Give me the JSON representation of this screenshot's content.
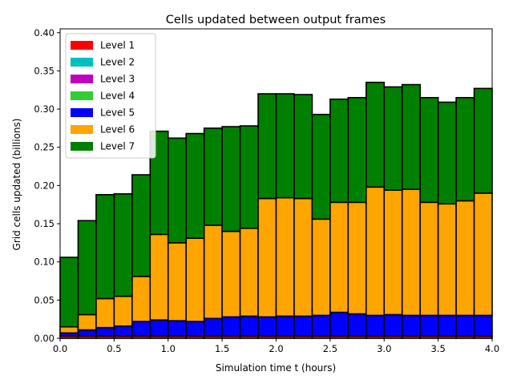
{
  "chart_data": {
    "type": "bar",
    "stacked": true,
    "title": "Cells updated between output frames",
    "xlabel": "Simulation time t (hours)",
    "ylabel": "Grid cells updated (billions)",
    "xlim": [
      0.0,
      4.0
    ],
    "ylim": [
      0.0,
      0.405
    ],
    "xticks": [
      "0.0",
      "0.5",
      "1.0",
      "1.5",
      "2.0",
      "2.5",
      "3.0",
      "3.5",
      "4.0"
    ],
    "xtick_values": [
      0.0,
      0.5,
      1.0,
      1.5,
      2.0,
      2.5,
      3.0,
      3.5,
      4.0
    ],
    "yticks": [
      "0.00",
      "0.05",
      "0.10",
      "0.15",
      "0.20",
      "0.25",
      "0.30",
      "0.35",
      "0.40"
    ],
    "ytick_values": [
      0.0,
      0.05,
      0.1,
      0.15,
      0.2,
      0.25,
      0.3,
      0.35,
      0.4
    ],
    "legend_position": "top-left",
    "bin_width": 0.1667,
    "x": [
      0.0833,
      0.25,
      0.4167,
      0.5833,
      0.75,
      0.9167,
      1.0833,
      1.25,
      1.4167,
      1.5833,
      1.75,
      1.9167,
      2.0833,
      2.25,
      2.4167,
      2.5833,
      2.75,
      2.9167,
      3.0833,
      3.25,
      3.4167,
      3.5833,
      3.75,
      3.9167
    ],
    "series": [
      {
        "name": "Level 1",
        "color": "#ff0000",
        "values": [
          0.003,
          0.003,
          0.003,
          0.003,
          0.003,
          0.003,
          0.003,
          0.003,
          0.003,
          0.003,
          0.003,
          0.003,
          0.003,
          0.003,
          0.003,
          0.003,
          0.003,
          0.003,
          0.003,
          0.003,
          0.003,
          0.003,
          0.003,
          0.003
        ]
      },
      {
        "name": "Level 2",
        "color": "#00bfbf",
        "values": [
          0,
          0,
          0,
          0,
          0,
          0,
          0,
          0,
          0,
          0,
          0,
          0,
          0,
          0,
          0,
          0,
          0,
          0,
          0,
          0,
          0,
          0,
          0,
          0
        ]
      },
      {
        "name": "Level 3",
        "color": "#bf00bf",
        "values": [
          0,
          0,
          0,
          0,
          0,
          0,
          0,
          0,
          0,
          0,
          0,
          0,
          0,
          0,
          0,
          0,
          0,
          0,
          0,
          0,
          0,
          0,
          0,
          0
        ]
      },
      {
        "name": "Level 4",
        "color": "#32cd32",
        "values": [
          0,
          0,
          0,
          0,
          0,
          0,
          0,
          0,
          0,
          0,
          0,
          0,
          0,
          0,
          0,
          0,
          0,
          0,
          0,
          0,
          0,
          0,
          0,
          0
        ]
      },
      {
        "name": "Level 5",
        "color": "#0000ff",
        "values": [
          0.004,
          0.008,
          0.011,
          0.013,
          0.019,
          0.021,
          0.02,
          0.019,
          0.023,
          0.025,
          0.026,
          0.025,
          0.026,
          0.026,
          0.027,
          0.031,
          0.029,
          0.027,
          0.028,
          0.027,
          0.027,
          0.027,
          0.027,
          0.027
        ]
      },
      {
        "name": "Level 6",
        "color": "#ffa500",
        "values": [
          0.008,
          0.02,
          0.038,
          0.039,
          0.059,
          0.112,
          0.102,
          0.109,
          0.122,
          0.112,
          0.115,
          0.155,
          0.155,
          0.154,
          0.126,
          0.144,
          0.146,
          0.168,
          0.163,
          0.165,
          0.148,
          0.146,
          0.15,
          0.16
        ]
      },
      {
        "name": "Level 7",
        "color": "#008000",
        "values": [
          0.091,
          0.123,
          0.136,
          0.134,
          0.133,
          0.135,
          0.137,
          0.137,
          0.127,
          0.137,
          0.134,
          0.137,
          0.136,
          0.136,
          0.137,
          0.135,
          0.137,
          0.137,
          0.135,
          0.137,
          0.137,
          0.133,
          0.135,
          0.137
        ]
      }
    ]
  }
}
